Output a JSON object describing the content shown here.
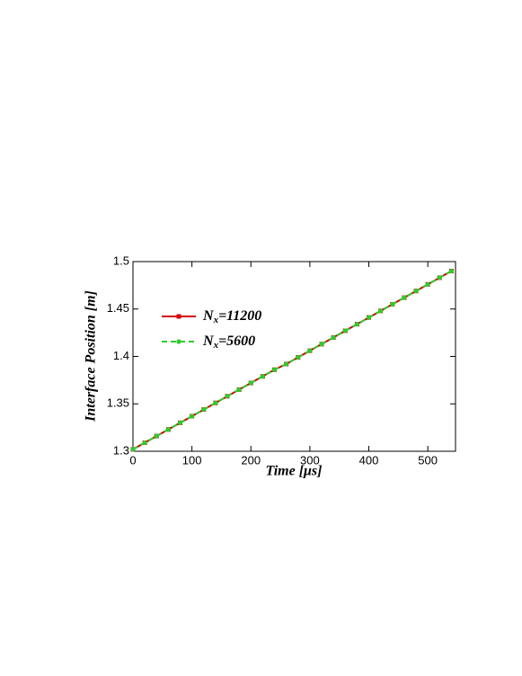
{
  "chart_data": {
    "type": "line",
    "x_label": "Time [μs]",
    "y_label": "Interface Position [m]",
    "x": [
      0,
      20,
      40,
      60,
      80,
      100,
      120,
      140,
      160,
      180,
      200,
      220,
      240,
      260,
      280,
      300,
      320,
      340,
      360,
      380,
      400,
      420,
      440,
      460,
      480,
      500,
      520,
      540
    ],
    "series": [
      {
        "name": "Nx=11200",
        "color": "#d40000",
        "marker": "square",
        "dash": false,
        "values": [
          1.302,
          1.309,
          1.316,
          1.323,
          1.33,
          1.337,
          1.344,
          1.351,
          1.358,
          1.365,
          1.372,
          1.379,
          1.386,
          1.392,
          1.399,
          1.406,
          1.413,
          1.42,
          1.427,
          1.434,
          1.441,
          1.448,
          1.455,
          1.462,
          1.469,
          1.476,
          1.483,
          1.49
        ]
      },
      {
        "name": "Nx=5600",
        "color": "#2ecc2e",
        "marker": "circle",
        "dash": true,
        "values": [
          1.302,
          1.309,
          1.316,
          1.323,
          1.33,
          1.337,
          1.344,
          1.351,
          1.358,
          1.365,
          1.372,
          1.379,
          1.386,
          1.392,
          1.399,
          1.406,
          1.413,
          1.42,
          1.427,
          1.434,
          1.441,
          1.448,
          1.455,
          1.462,
          1.469,
          1.476,
          1.483,
          1.49
        ]
      }
    ],
    "xlim": [
      0,
      547
    ],
    "xticks": [
      0,
      100,
      200,
      300,
      400,
      500
    ],
    "ylim": [
      1.3,
      1.5
    ],
    "yticks": [
      1.3,
      1.35,
      1.4,
      1.45,
      1.5
    ],
    "legend": "upper-left"
  }
}
